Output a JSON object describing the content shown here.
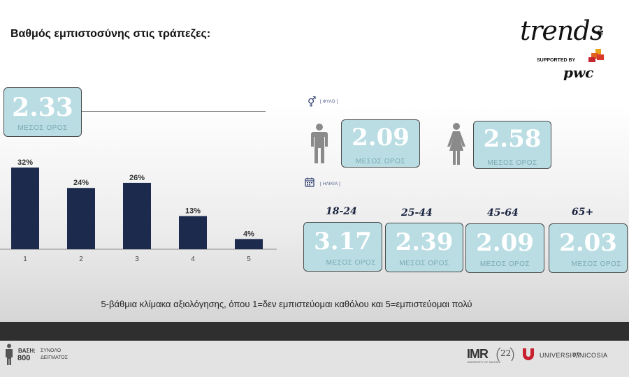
{
  "title": "Βαθμός εμπιστοσύνης στις τράπεζες:",
  "logo": {
    "brand": "trends",
    "supported": "SUPPORTED BY",
    "sponsor": "pwc"
  },
  "overall": {
    "value": "2.33",
    "label": "ΜΕΣΟΣ ΟΡΟΣ"
  },
  "gender": {
    "label": "[ ΦΥΛΟ ]",
    "male": {
      "value": "2.09",
      "label": "ΜΕΣΟΣ ΟΡΟΣ"
    },
    "female": {
      "value": "2.58",
      "label": "ΜΕΣΟΣ ΟΡΟΣ"
    }
  },
  "age": {
    "label": "[ ΗΛΙΚΙΑ ]",
    "groups": [
      {
        "name": "18-24",
        "value": "3.17",
        "label": "ΜΕΣΟΣ ΟΡΟΣ"
      },
      {
        "name": "25-44",
        "value": "2.39",
        "label": "ΜΕΣΟΣ ΟΡΟΣ"
      },
      {
        "name": "45-64",
        "value": "2.09",
        "label": "ΜΕΣΟΣ ΟΡΟΣ"
      },
      {
        "name": "65+",
        "value": "2.03",
        "label": "ΜΕΣΟΣ ΟΡΟΣ"
      }
    ]
  },
  "note": "5-βάθμια κλίμακα αξιολόγησης, όπου 1=δεν εμπιστεύομαι καθόλου και 5=εμπιστεύομαι πολύ",
  "footer": {
    "base_label": "ΒΑΣΗ:",
    "base_value": "800",
    "sample_1": "ΣΥΝΟΛΟ",
    "sample_2": "ΔΕΙΓΜΑΤΟΣ",
    "imr": "IMR",
    "imr_sub": "UNIVERSITY OF NICOSIA",
    "anniversary": "22",
    "uni_1": "UNIVERSITY",
    "uni_2": "of",
    "uni_3": "NICOSIA"
  },
  "colors": {
    "bar": "#1c2a4e",
    "box_fill": "#b9dde3",
    "box_label": "#7aa8b2"
  },
  "chart_data": {
    "type": "bar",
    "categories": [
      "1",
      "2",
      "3",
      "4",
      "5"
    ],
    "values": [
      32,
      24,
      26,
      13,
      4
    ],
    "data_labels": [
      "32%",
      "24%",
      "26%",
      "13%",
      "4%"
    ],
    "title": "",
    "xlabel": "",
    "ylabel": "",
    "ylim": [
      0,
      35
    ],
    "grid": false
  }
}
